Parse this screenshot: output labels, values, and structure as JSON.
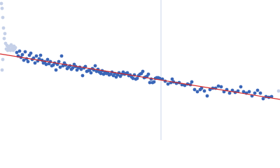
{
  "chart_data": {
    "type": "scatter",
    "xlim": [
      0,
      400
    ],
    "ylim": [
      200,
      0
    ],
    "series": [
      {
        "color": "#c5d0e8",
        "x": [
          2,
          3,
          4,
          5,
          6,
          7,
          8,
          9,
          10,
          11,
          12,
          13,
          14,
          15,
          16,
          17,
          18,
          19,
          20,
          21,
          22,
          4,
          3,
          398
        ],
        "values": [
          5,
          12,
          25,
          40,
          55,
          48,
          62,
          70,
          65,
          72,
          68,
          70,
          66,
          72,
          64,
          70,
          68,
          72,
          66,
          70,
          68,
          85,
          100,
          130
        ]
      },
      {
        "color": "#3a66b8",
        "x": [
          24,
          26,
          28,
          30,
          32,
          34,
          36,
          38,
          40,
          42,
          44,
          46,
          48,
          50,
          52,
          54,
          56,
          58,
          60,
          62,
          64,
          66,
          68,
          70,
          72,
          74,
          76,
          78,
          80,
          82,
          84,
          86,
          88,
          90,
          92,
          94,
          96,
          98,
          100,
          102,
          104,
          106,
          108,
          110,
          112,
          114,
          116,
          118,
          120,
          122,
          124,
          126,
          128,
          130,
          132,
          134,
          136,
          138,
          140,
          142,
          144,
          146,
          148,
          150,
          152,
          154,
          156,
          158,
          160,
          162,
          164,
          166,
          168,
          170,
          172,
          174,
          176,
          178,
          180,
          182,
          184,
          186,
          188,
          190,
          192,
          194,
          196,
          198,
          200,
          202,
          204,
          206,
          208,
          210,
          212,
          214,
          216,
          218,
          220,
          222,
          224,
          226,
          228,
          232,
          236,
          240,
          244,
          246,
          248,
          252,
          256,
          260,
          264,
          268,
          272,
          274,
          278,
          282,
          286,
          288,
          292,
          296,
          300,
          304,
          308,
          312,
          316,
          320,
          324,
          328,
          332,
          336,
          340,
          344,
          348,
          352,
          356,
          360,
          364,
          368,
          372,
          376,
          380,
          384,
          388
        ],
        "values": [
          75,
          80,
          73,
          82,
          78,
          86,
          74,
          84,
          88,
          79,
          76,
          85,
          83,
          90,
          80,
          87,
          84,
          79,
          86,
          90,
          88,
          92,
          85,
          91,
          88,
          94,
          93,
          90,
          100,
          92,
          88,
          96,
          80,
          94,
          90,
          93,
          98,
          96,
          94,
          99,
          97,
          92,
          95,
          100,
          97,
          96,
          99,
          108,
          97,
          95,
          102,
          101,
          100,
          104,
          98,
          100,
          94,
          102,
          99,
          103,
          105,
          101,
          106,
          103,
          105,
          104,
          107,
          106,
          103,
          108,
          105,
          110,
          107,
          104,
          109,
          106,
          103,
          106,
          105,
          104,
          108,
          107,
          110,
          112,
          107,
          113,
          112,
          108,
          106,
          105,
          102,
          111,
          110,
          109,
          106,
          118,
          113,
          118,
          117,
          112,
          111,
          111,
          112,
          113,
          116,
          120,
          118,
          113,
          117,
          119,
          118,
          121,
          122,
          120,
          121,
          117,
          128,
          131,
          128,
          126,
          130,
          137,
          128,
          126,
          126,
          123,
          124,
          131,
          128,
          133,
          129,
          132,
          130,
          124,
          131,
          133,
          131,
          137,
          133,
          129,
          133,
          141,
          138,
          139,
          138
        ]
      }
    ],
    "fit": {
      "color": "#d62728",
      "x": [
        0,
        400
      ],
      "values": [
        77,
        142
      ]
    },
    "vline": {
      "color": "#c9d3ea",
      "value": 230
    }
  }
}
